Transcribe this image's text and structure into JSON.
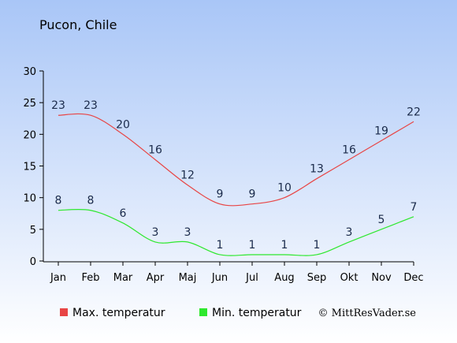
{
  "location": "Pucon, Chile",
  "copyright": "© MittResVader.se",
  "colors": {
    "max": "#e84545",
    "min": "#2ee82e",
    "bg_top": "#a9c6f7",
    "bg_bottom": "#ffffff",
    "label": "#1a2a4a"
  },
  "chart_data": {
    "type": "line",
    "title": "Pucon, Chile",
    "categories": [
      "Jan",
      "Feb",
      "Mar",
      "Apr",
      "Maj",
      "Jun",
      "Jul",
      "Aug",
      "Sep",
      "Okt",
      "Nov",
      "Dec"
    ],
    "ylim": [
      0,
      30
    ],
    "yticks": [
      0,
      5,
      10,
      15,
      20,
      25,
      30
    ],
    "grid": false,
    "legend_position": "bottom-left",
    "series": [
      {
        "name": "Max. temperatur",
        "key": "max",
        "values": [
          23,
          23,
          20,
          16,
          12,
          9,
          9,
          10,
          13,
          16,
          19,
          22
        ]
      },
      {
        "name": "Min. temperatur",
        "key": "min",
        "values": [
          8,
          8,
          6,
          3,
          3,
          1,
          1,
          1,
          1,
          3,
          5,
          7
        ]
      }
    ]
  }
}
